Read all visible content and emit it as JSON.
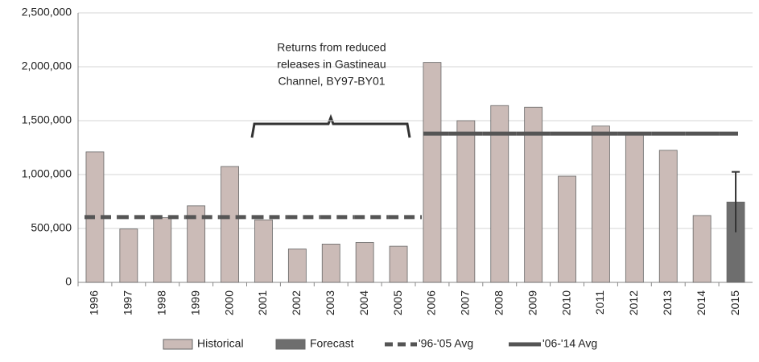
{
  "chart_data": {
    "type": "bar",
    "categories": [
      "1996",
      "1997",
      "1998",
      "1999",
      "2000",
      "2001",
      "2002",
      "2003",
      "2004",
      "2005",
      "2006",
      "2007",
      "2008",
      "2009",
      "2010",
      "2011",
      "2012",
      "2013",
      "2014",
      "2015"
    ],
    "series": [
      {
        "name": "Historical",
        "kind": "bar",
        "color": "#cbbbb7",
        "values": [
          1210000,
          495000,
          600000,
          710000,
          1075000,
          580000,
          310000,
          355000,
          370000,
          335000,
          2040000,
          1500000,
          1640000,
          1625000,
          985000,
          1450000,
          1390000,
          1225000,
          620000,
          null
        ]
      },
      {
        "name": "Forecast",
        "kind": "bar",
        "color": "#6e6e6e",
        "values": [
          null,
          null,
          null,
          null,
          null,
          null,
          null,
          null,
          null,
          null,
          null,
          null,
          null,
          null,
          null,
          null,
          null,
          null,
          null,
          745000
        ],
        "errors": [
          null,
          null,
          null,
          null,
          null,
          null,
          null,
          null,
          null,
          null,
          null,
          null,
          null,
          null,
          null,
          null,
          null,
          null,
          null,
          280000
        ]
      },
      {
        "name": "'96-'05 Avg",
        "kind": "dashed",
        "color": "#555555",
        "values": [
          605000,
          605000,
          605000,
          605000,
          605000,
          605000,
          605000,
          605000,
          605000,
          605000,
          null,
          null,
          null,
          null,
          null,
          null,
          null,
          null,
          null,
          null
        ]
      },
      {
        "name": "'06-'14 Avg",
        "kind": "solid",
        "color": "#555555",
        "values": [
          null,
          null,
          null,
          null,
          null,
          null,
          null,
          null,
          null,
          null,
          1380000,
          1380000,
          1380000,
          1380000,
          1380000,
          1380000,
          1380000,
          1380000,
          1380000,
          1380000
        ]
      }
    ],
    "annotation": [
      "Returns from reduced",
      "releases in Gastineau",
      "Channel, BY97-BY01"
    ],
    "ylim": [
      0,
      2500000
    ],
    "yticks": [
      0,
      {
        "value": 500000,
        "label": "500,000"
      },
      {
        "value": 1000000,
        "label": "1,000,000"
      },
      {
        "value": 1500000,
        "label": "1,500,000"
      },
      {
        "value": 2000000,
        "label": "2,000,000"
      },
      {
        "value": 2500000,
        "label": "2,500,000"
      }
    ],
    "grid": true
  }
}
